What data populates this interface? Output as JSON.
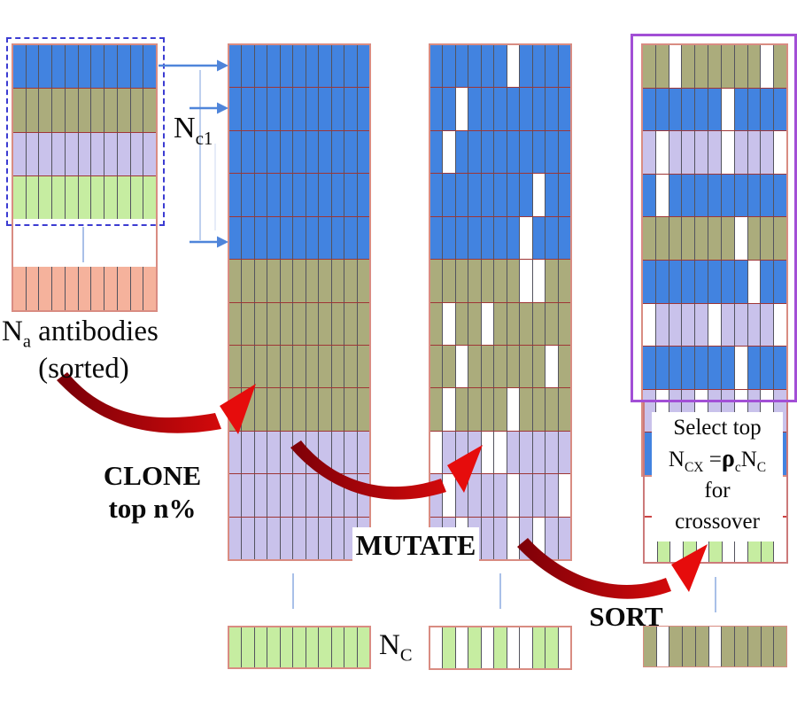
{
  "labels": {
    "na_n": "N",
    "na_sub": "a",
    "na_rest": " antibodies",
    "sorted": "(sorted)",
    "nc1_n": "N",
    "nc1_sub": "c1",
    "clone_line1": "CLONE",
    "clone_line2": "top n%",
    "mutate": "MUTATE",
    "sort": "SORT",
    "nc_n": "N",
    "nc_sub": "C",
    "select_line1": "Select top",
    "formula_n1": "N",
    "formula_n1_sub": "CX",
    "formula_eq": " =",
    "formula_rho": "ρ",
    "formula_rho_sub": "c",
    "formula_n2": "N",
    "formula_n2_sub": "C",
    "select_line3": "for",
    "select_line4": "crossover"
  },
  "colors": {
    "blue": "#4283e0",
    "olive": "#abac7c",
    "lavender": "#c9c2eb",
    "green": "#c6eda1",
    "salmon": "#f5b29c",
    "gap": "#ffffff",
    "row_separator": "#9e3636",
    "cell_divider": "#53535e",
    "matrix_border": "#d98c82",
    "dashed_border": "#3c3cd2",
    "purple_border": "#a24fd6",
    "red_arrow_dark": "#7d0008",
    "red_arrow_bright": "#e60c0c",
    "blue_arrow": "#4f85da",
    "tick_blue": "#a9c0e8"
  },
  "matrices": {
    "seed_top": {
      "cols": 11,
      "rows": [
        {
          "color": "blue",
          "gaps": []
        },
        {
          "color": "olive",
          "gaps": []
        },
        {
          "color": "lavender",
          "gaps": []
        },
        {
          "color": "green",
          "gaps": []
        }
      ]
    },
    "seed_bottom": {
      "cols": 11,
      "rows": [
        {
          "color": "salmon",
          "gaps": []
        }
      ]
    },
    "clone": {
      "cols": 11,
      "rows": [
        {
          "color": "blue",
          "gaps": []
        },
        {
          "color": "blue",
          "gaps": []
        },
        {
          "color": "blue",
          "gaps": []
        },
        {
          "color": "blue",
          "gaps": []
        },
        {
          "color": "blue",
          "gaps": []
        },
        {
          "color": "olive",
          "gaps": []
        },
        {
          "color": "olive",
          "gaps": []
        },
        {
          "color": "olive",
          "gaps": []
        },
        {
          "color": "olive",
          "gaps": []
        },
        {
          "color": "lavender",
          "gaps": []
        },
        {
          "color": "lavender",
          "gaps": []
        },
        {
          "color": "lavender",
          "gaps": []
        }
      ]
    },
    "mutated": {
      "cols": 11,
      "rows": [
        {
          "color": "blue",
          "gaps": [
            7
          ]
        },
        {
          "color": "blue",
          "gaps": [
            3
          ]
        },
        {
          "color": "blue",
          "gaps": [
            2
          ]
        },
        {
          "color": "blue",
          "gaps": [
            9
          ]
        },
        {
          "color": "blue",
          "gaps": [
            8
          ]
        },
        {
          "color": "olive",
          "gaps": [
            8,
            9
          ]
        },
        {
          "color": "olive",
          "gaps": [
            2,
            5
          ]
        },
        {
          "color": "olive",
          "gaps": [
            3,
            10
          ]
        },
        {
          "color": "olive",
          "gaps": [
            2,
            7
          ]
        },
        {
          "color": "lavender",
          "gaps": [
            1,
            5,
            6
          ]
        },
        {
          "color": "lavender",
          "gaps": [
            2,
            7,
            11
          ]
        },
        {
          "color": "lavender",
          "gaps": [
            3,
            7,
            9
          ]
        }
      ]
    },
    "sorted": {
      "cols": 11,
      "rows": [
        {
          "color": "olive",
          "gaps": [
            3,
            10
          ]
        },
        {
          "color": "blue",
          "gaps": [
            7
          ]
        },
        {
          "color": "lavender",
          "gaps": [
            2,
            7,
            11
          ]
        },
        {
          "color": "blue",
          "gaps": [
            2
          ]
        },
        {
          "color": "olive",
          "gaps": [
            8
          ]
        },
        {
          "color": "blue",
          "gaps": [
            9
          ]
        },
        {
          "color": "lavender",
          "gaps": [
            1,
            6,
            11
          ]
        },
        {
          "color": "blue",
          "gaps": [
            8
          ]
        },
        {
          "color": "lavender",
          "gaps": [
            2,
            5,
            8,
            10
          ]
        },
        {
          "color": "blue",
          "gaps": []
        }
      ]
    },
    "nc_left": {
      "cols": 11,
      "rows": [
        {
          "color": "green",
          "gaps": []
        }
      ]
    },
    "nc_mid": {
      "cols": 11,
      "rows": [
        {
          "color": "green",
          "gaps": [
            1,
            3,
            5,
            7,
            8,
            11
          ]
        }
      ]
    },
    "crossover_row": {
      "cols": 11,
      "rows": [
        {
          "color": "green",
          "gaps": [
            1,
            3,
            5,
            7,
            8,
            11
          ]
        }
      ]
    },
    "nc_right": {
      "cols": 11,
      "rows": [
        {
          "color": "olive",
          "gaps": [
            2,
            6
          ]
        }
      ]
    }
  }
}
